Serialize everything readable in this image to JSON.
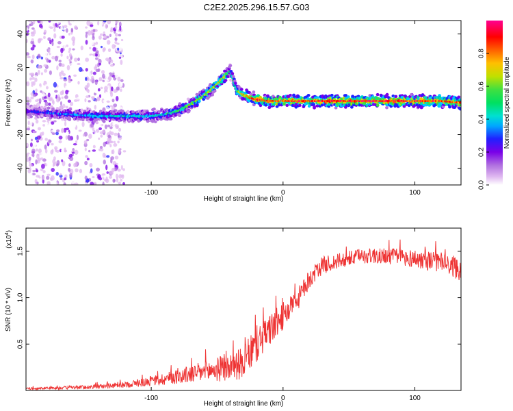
{
  "figure": {
    "title": "C2E2.2025.296.15.57.G03"
  },
  "colors": {
    "background": "#ffffff",
    "axis": "#000000",
    "snr_line": "#ee3333",
    "spectrogram_colormap": [
      "#ffffff",
      "#e0b8f0",
      "#b070e0",
      "#7a00e8",
      "#2020ff",
      "#00c8ff",
      "#00e0a0",
      "#40e040",
      "#c0e000",
      "#ffc000",
      "#ff6000",
      "#ff0000",
      "#ff0088"
    ]
  },
  "chart_data": [
    {
      "type": "heatmap",
      "name": "spectrogram",
      "title": "C2E2.2025.296.15.57.G03",
      "xlabel": "Height of straight line (km)",
      "ylabel": "Frequency (Hz)",
      "xlim": [
        -195,
        135
      ],
      "ylim": [
        -50,
        48
      ],
      "xticks": [
        -100,
        0,
        100
      ],
      "xtick_labels": [
        "-100",
        "0",
        "100"
      ],
      "yticks": [
        -40,
        -20,
        0,
        20,
        40
      ],
      "ytick_labels": [
        "-40",
        "-20",
        "0",
        "20",
        "40"
      ],
      "colorbar": {
        "label": "Normalized spectral amplitude",
        "range": [
          0,
          1
        ],
        "ticks": [
          0.0,
          0.2,
          0.4,
          0.6,
          0.8
        ],
        "tick_labels": [
          "0.0",
          "0.2",
          "0.4",
          "0.6",
          "0.8"
        ]
      },
      "ridge": {
        "description_x_km": [
          -195,
          -180,
          -160,
          -140,
          -120,
          -100,
          -90,
          -80,
          -70,
          -60,
          -50,
          -45,
          -40,
          -35,
          -30,
          -25,
          -20,
          -10,
          0,
          20,
          40,
          60,
          80,
          100,
          120,
          135
        ],
        "frequency_hz": [
          -6,
          -7,
          -8,
          -9,
          -9,
          -9,
          -8,
          -6,
          -2,
          3,
          10,
          14,
          18,
          6,
          4,
          2,
          1,
          0,
          0,
          0,
          0,
          0,
          0,
          0,
          0,
          -1
        ],
        "amplitude": [
          0.3,
          0.35,
          0.4,
          0.45,
          0.45,
          0.45,
          0.5,
          0.55,
          0.6,
          0.65,
          0.7,
          0.75,
          0.5,
          0.6,
          0.75,
          0.85,
          0.9,
          0.9,
          0.9,
          0.9,
          0.95,
          0.95,
          0.95,
          0.9,
          0.9,
          0.85
        ]
      }
    },
    {
      "type": "line",
      "name": "snr",
      "xlabel": "Height of straight line (km)",
      "ylabel": "SNR (10 * v/v)",
      "y_multiplier": "(x10",
      "y_multiplier_exp": "4",
      "y_multiplier_close": ")",
      "xlim": [
        -195,
        135
      ],
      "ylim": [
        0,
        1.75
      ],
      "xticks": [
        -100,
        0,
        100
      ],
      "xtick_labels": [
        "-100",
        "0",
        "100"
      ],
      "yticks": [
        0.5,
        1.0,
        1.5
      ],
      "ytick_labels": [
        "0.5",
        "1.0",
        "1.5"
      ],
      "trend": {
        "x": [
          -195,
          -160,
          -140,
          -120,
          -100,
          -80,
          -60,
          -40,
          -30,
          -20,
          -10,
          0,
          10,
          20,
          30,
          60,
          80,
          100,
          120,
          135
        ],
        "y": [
          0.02,
          0.03,
          0.04,
          0.06,
          0.1,
          0.15,
          0.2,
          0.25,
          0.3,
          0.5,
          0.65,
          0.8,
          0.95,
          1.2,
          1.35,
          1.45,
          1.45,
          1.42,
          1.38,
          1.3
        ]
      },
      "noise_amplitude": {
        "x": [
          -195,
          -120,
          -80,
          -40,
          -20,
          0,
          20,
          60,
          100,
          135
        ],
        "y": [
          0.01,
          0.03,
          0.08,
          0.15,
          0.2,
          0.15,
          0.1,
          0.08,
          0.1,
          0.12
        ]
      }
    }
  ]
}
